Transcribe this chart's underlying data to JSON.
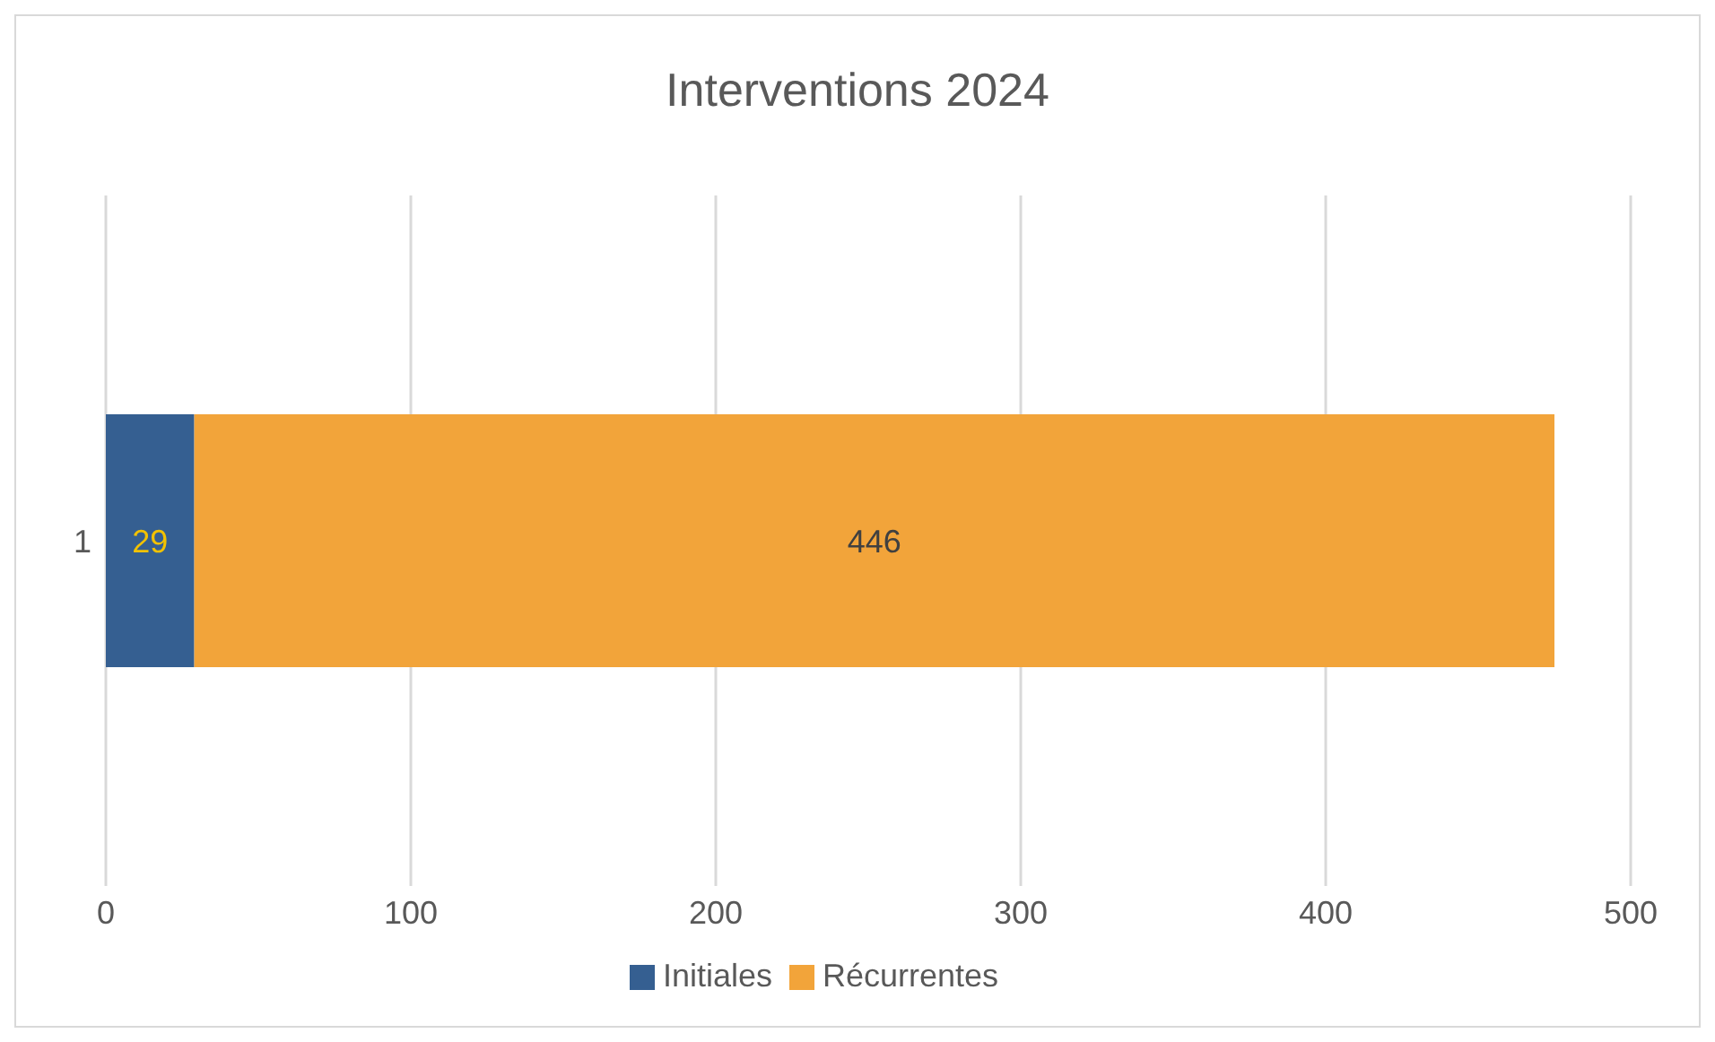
{
  "chart_data": {
    "type": "bar",
    "title": "Interventions 2024",
    "orientation": "horizontal",
    "stacked": true,
    "categories": [
      "1"
    ],
    "series": [
      {
        "name": "Initiales",
        "color": "#355f91",
        "values": [
          29
        ]
      },
      {
        "name": "Récurrentes",
        "color": "#f2a43a",
        "values": [
          446
        ]
      }
    ],
    "xlim": [
      0,
      500
    ],
    "xticks": [
      0,
      100,
      200,
      300,
      400,
      500
    ],
    "grid": "x",
    "legend": "bottom",
    "data_labels": true
  }
}
